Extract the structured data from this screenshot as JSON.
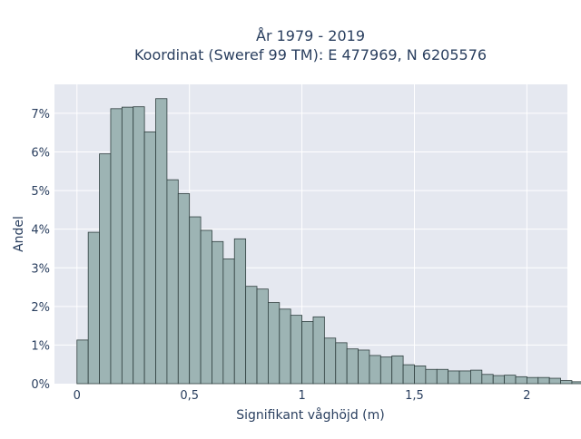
{
  "chart_data": {
    "type": "bar",
    "title": "År 1979 - 2019",
    "subtitle": "Koordinat (Sweref 99 TM): E 477969, N 6205576",
    "xlabel": "Signifikant våghöjd (m)",
    "ylabel": "Andel",
    "xlim": [
      -0.1,
      2.18
    ],
    "ylim": [
      0,
      7.75
    ],
    "x_ticks": [
      0,
      0.5,
      1,
      1.5,
      2
    ],
    "x_tick_labels": [
      "0",
      "0,5",
      "1",
      "1,5",
      "2"
    ],
    "y_ticks": [
      0,
      1,
      2,
      3,
      4,
      5,
      6,
      7
    ],
    "y_tick_labels": [
      "0%",
      "1%",
      "2%",
      "3%",
      "4%",
      "5%",
      "6%",
      "7%"
    ],
    "bin_start": 0,
    "bin_width": 0.05,
    "values": [
      1.13,
      3.92,
      5.95,
      7.12,
      7.16,
      7.17,
      6.52,
      7.38,
      5.28,
      4.92,
      4.32,
      3.97,
      3.68,
      3.23,
      3.75,
      2.52,
      2.45,
      2.1,
      1.93,
      1.77,
      1.61,
      1.73,
      1.18,
      1.06,
      0.9,
      0.87,
      0.73,
      0.69,
      0.72,
      0.49,
      0.46,
      0.37,
      0.37,
      0.33,
      0.33,
      0.35,
      0.24,
      0.21,
      0.22,
      0.18,
      0.16,
      0.16,
      0.14,
      0.08,
      0.05,
      0.03,
      0.03,
      0.03,
      0.02,
      0.02,
      0.01
    ],
    "grid": true,
    "bar_color": "#9db4b4",
    "bar_edge_color": "#2f3f3f",
    "plot_bg": "#e5e8f0",
    "grid_color": "#ffffff"
  }
}
